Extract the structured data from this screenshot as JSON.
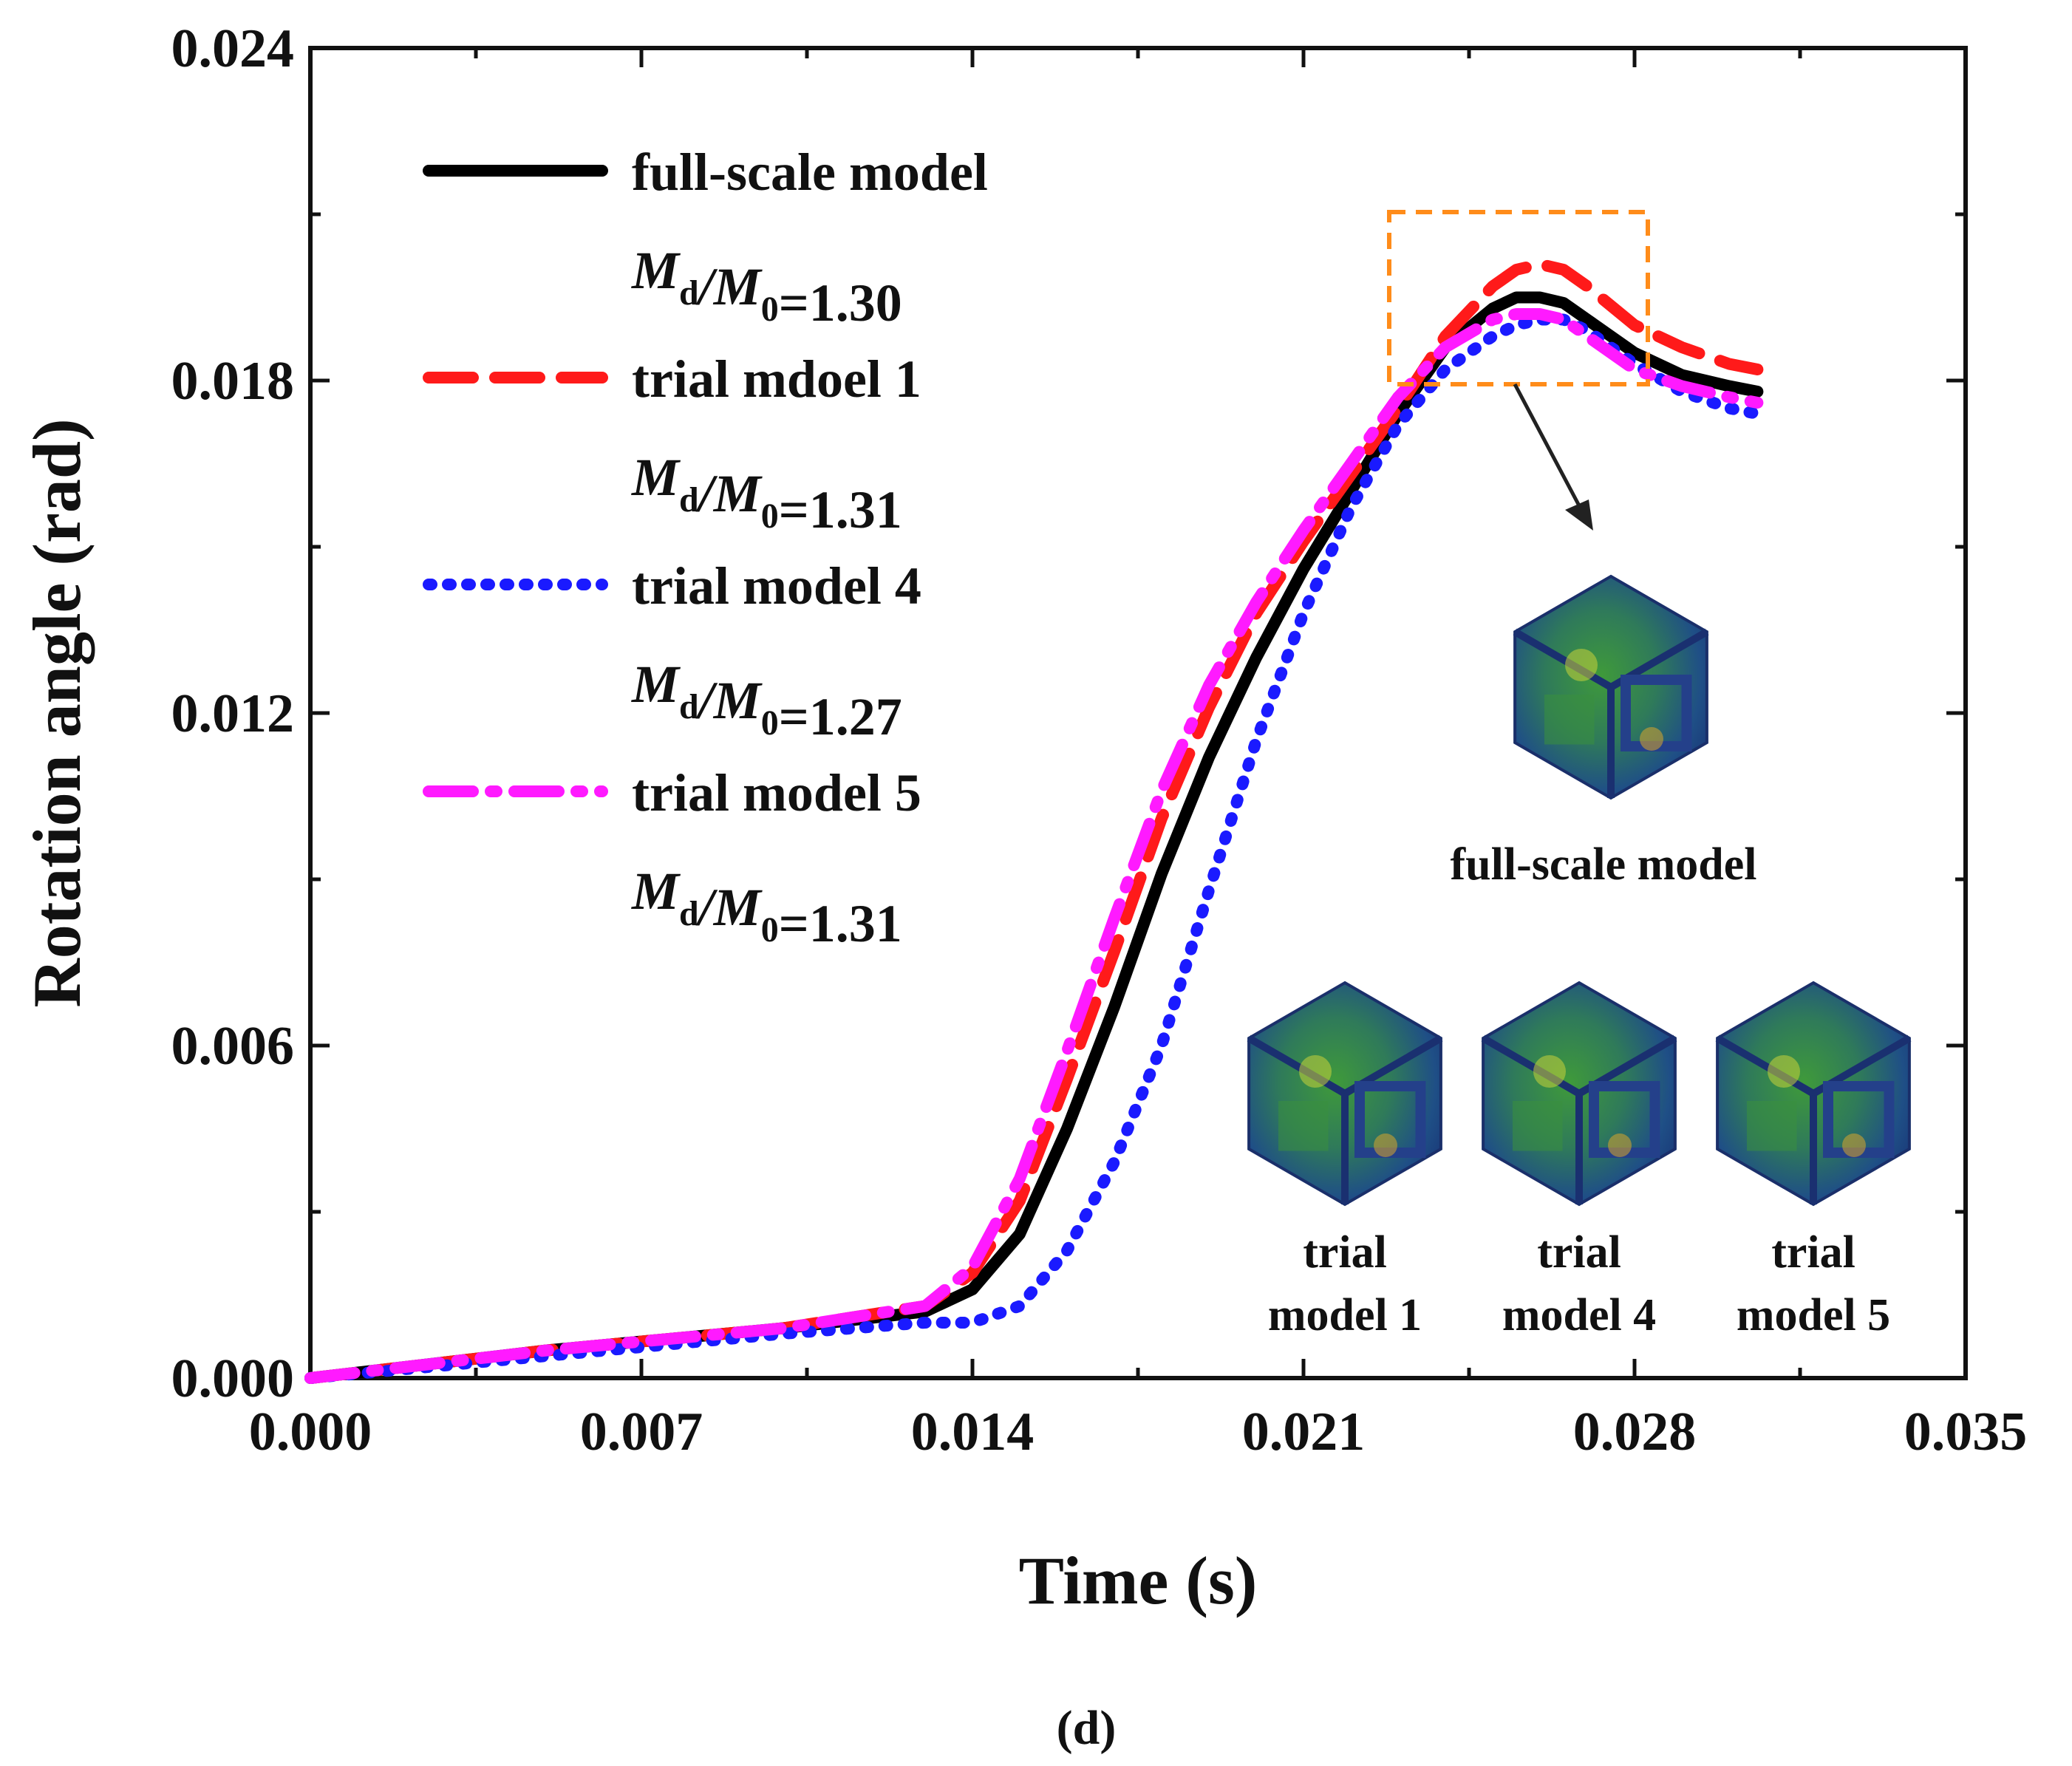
{
  "chart_data": {
    "type": "line",
    "xlabel": "Time (s)",
    "ylabel": "Rotation angle (rad)",
    "xlim": [
      0.0,
      0.035
    ],
    "ylim": [
      0.0,
      0.024
    ],
    "xticks": [
      "0.000",
      "0.007",
      "0.014",
      "0.021",
      "0.028",
      "0.035"
    ],
    "yticks": [
      "0.000",
      "0.006",
      "0.012",
      "0.018",
      "0.024"
    ],
    "caption": "(d)",
    "series": [
      {
        "name": "full-scale model",
        "ratio_label": "=1.30",
        "color": "#000000",
        "style": "solid",
        "x": [
          0.0,
          0.005,
          0.01,
          0.013,
          0.014,
          0.015,
          0.016,
          0.017,
          0.018,
          0.019,
          0.02,
          0.021,
          0.022,
          0.023,
          0.024,
          0.025,
          0.0255,
          0.026,
          0.0265,
          0.027,
          0.028,
          0.029,
          0.03,
          0.0306
        ],
        "y": [
          0.0,
          0.0005,
          0.0009,
          0.0012,
          0.0016,
          0.0026,
          0.0045,
          0.0067,
          0.0091,
          0.0112,
          0.013,
          0.0146,
          0.016,
          0.0174,
          0.0186,
          0.0193,
          0.0195,
          0.0195,
          0.0194,
          0.0191,
          0.0185,
          0.0181,
          0.0179,
          0.0178
        ]
      },
      {
        "name": "trial mdoel 1",
        "ratio_label": "=1.31",
        "color": "#ff1a1a",
        "style": "dash",
        "x": [
          0.0,
          0.005,
          0.01,
          0.013,
          0.014,
          0.015,
          0.016,
          0.017,
          0.018,
          0.019,
          0.02,
          0.021,
          0.022,
          0.023,
          0.024,
          0.025,
          0.0255,
          0.026,
          0.0265,
          0.027,
          0.028,
          0.029,
          0.03,
          0.0306
        ],
        "y": [
          0.0,
          0.0005,
          0.0009,
          0.0013,
          0.0019,
          0.0032,
          0.0054,
          0.0077,
          0.0101,
          0.0121,
          0.0138,
          0.0151,
          0.0163,
          0.0175,
          0.0188,
          0.0197,
          0.02,
          0.0201,
          0.02,
          0.0197,
          0.019,
          0.0186,
          0.0183,
          0.0182
        ]
      },
      {
        "name": "trial model 4",
        "ratio_label": "=1.27",
        "color": "#1a1aff",
        "style": "dot",
        "x": [
          0.0,
          0.005,
          0.01,
          0.013,
          0.014,
          0.015,
          0.016,
          0.017,
          0.018,
          0.019,
          0.02,
          0.021,
          0.022,
          0.023,
          0.024,
          0.025,
          0.0255,
          0.026,
          0.0265,
          0.027,
          0.028,
          0.029,
          0.03,
          0.0306
        ],
        "y": [
          0.0,
          0.0004,
          0.0008,
          0.001,
          0.001,
          0.0013,
          0.0023,
          0.0039,
          0.006,
          0.0088,
          0.0115,
          0.0138,
          0.0157,
          0.0172,
          0.0182,
          0.0188,
          0.019,
          0.0191,
          0.0191,
          0.0189,
          0.0183,
          0.0178,
          0.0175,
          0.0174
        ]
      },
      {
        "name": "trial model 5",
        "ratio_label": "=1.31",
        "color": "#ff1aff",
        "style": "dashdot",
        "x": [
          0.0,
          0.005,
          0.01,
          0.013,
          0.014,
          0.015,
          0.016,
          0.017,
          0.018,
          0.019,
          0.02,
          0.021,
          0.022,
          0.023,
          0.024,
          0.025,
          0.0255,
          0.026,
          0.0265,
          0.027,
          0.028,
          0.029,
          0.03,
          0.0306
        ],
        "y": [
          0.0,
          0.0005,
          0.0009,
          0.0013,
          0.002,
          0.0036,
          0.0059,
          0.0083,
          0.0106,
          0.0125,
          0.014,
          0.0153,
          0.0165,
          0.0177,
          0.0186,
          0.0191,
          0.0192,
          0.0192,
          0.0191,
          0.0188,
          0.0182,
          0.0179,
          0.0177,
          0.0176
        ]
      }
    ],
    "ratio_prefix": {
      "M": "M",
      "sub_d": "d",
      "slash": "/",
      "sub_0": "0"
    },
    "inset": {
      "main_label": "full-scale model",
      "sub_labels": [
        [
          "trial",
          "model 1"
        ],
        [
          "trial",
          "model 4"
        ],
        [
          "trial",
          "model 5"
        ]
      ]
    }
  }
}
